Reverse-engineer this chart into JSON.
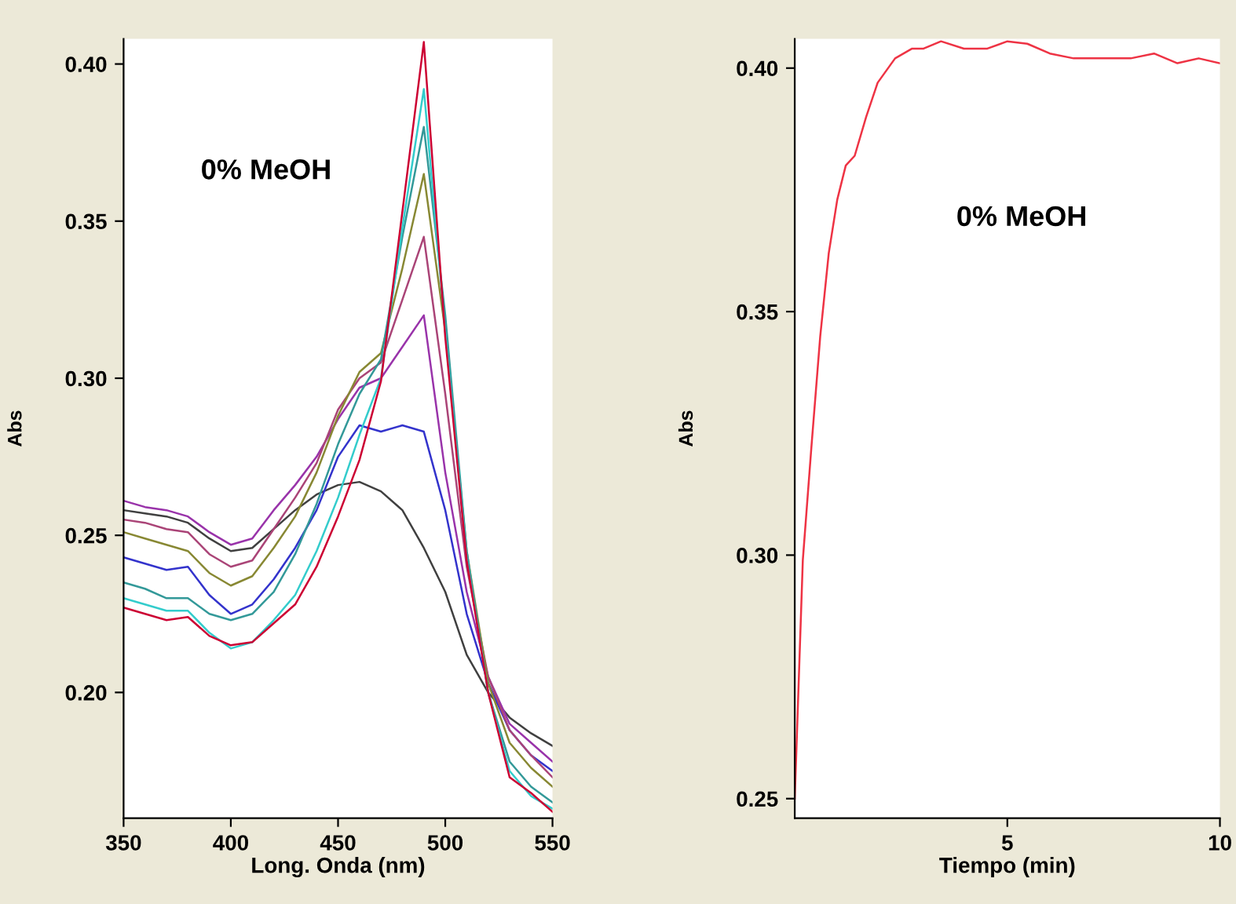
{
  "chart_data": [
    {
      "type": "line",
      "xlabel": "Long. Onda (nm)",
      "ylabel": "Abs",
      "annotations": [
        "0% MeOH"
      ],
      "x": [
        350,
        360,
        370,
        380,
        390,
        400,
        410,
        420,
        430,
        440,
        450,
        460,
        470,
        480,
        490,
        500,
        510,
        520,
        530,
        540,
        550
      ],
      "xlim": [
        350,
        550
      ],
      "xticks": [
        350,
        400,
        450,
        500,
        550
      ],
      "ylim": [
        0.16,
        0.408
      ],
      "yticks": [
        {
          "value": 0.2,
          "label": "0.20"
        },
        {
          "value": 0.25,
          "label": "0.25"
        },
        {
          "value": 0.3,
          "label": "0.30"
        },
        {
          "value": 0.35,
          "label": "0.35"
        },
        {
          "value": 0.4,
          "label": "0.40"
        }
      ],
      "grid": false,
      "series": [
        {
          "color": "#404040",
          "values": [
            0.258,
            0.257,
            0.256,
            0.254,
            0.249,
            0.245,
            0.246,
            0.252,
            0.258,
            0.263,
            0.266,
            0.267,
            0.264,
            0.258,
            0.246,
            0.232,
            0.212,
            0.2,
            0.192,
            0.187,
            0.183
          ]
        },
        {
          "color": "#3333cc",
          "values": [
            0.243,
            0.241,
            0.239,
            0.24,
            0.231,
            0.225,
            0.228,
            0.236,
            0.246,
            0.258,
            0.275,
            0.285,
            0.283,
            0.285,
            0.283,
            0.258,
            0.225,
            0.203,
            0.188,
            0.18,
            0.175
          ]
        },
        {
          "color": "#9933aa",
          "values": [
            0.261,
            0.259,
            0.258,
            0.256,
            0.251,
            0.247,
            0.249,
            0.258,
            0.266,
            0.275,
            0.287,
            0.297,
            0.3,
            0.31,
            0.32,
            0.27,
            0.232,
            0.205,
            0.19,
            0.184,
            0.178
          ]
        },
        {
          "color": "#aa4477",
          "values": [
            0.255,
            0.254,
            0.252,
            0.251,
            0.244,
            0.24,
            0.242,
            0.252,
            0.262,
            0.273,
            0.29,
            0.3,
            0.305,
            0.325,
            0.345,
            0.295,
            0.24,
            0.205,
            0.188,
            0.18,
            0.173
          ]
        },
        {
          "color": "#888833",
          "values": [
            0.251,
            0.249,
            0.247,
            0.245,
            0.238,
            0.234,
            0.237,
            0.246,
            0.256,
            0.27,
            0.288,
            0.302,
            0.308,
            0.335,
            0.365,
            0.315,
            0.245,
            0.203,
            0.184,
            0.176,
            0.17
          ]
        },
        {
          "color": "#339999",
          "values": [
            0.235,
            0.233,
            0.23,
            0.23,
            0.225,
            0.223,
            0.225,
            0.232,
            0.244,
            0.26,
            0.279,
            0.295,
            0.306,
            0.345,
            0.38,
            0.32,
            0.245,
            0.2,
            0.178,
            0.17,
            0.165
          ]
        },
        {
          "color": "#33cccc",
          "values": [
            0.23,
            0.228,
            0.226,
            0.226,
            0.219,
            0.214,
            0.216,
            0.223,
            0.231,
            0.245,
            0.262,
            0.282,
            0.3,
            0.348,
            0.392,
            0.315,
            0.243,
            0.2,
            0.175,
            0.167,
            0.163
          ]
        },
        {
          "color": "#cc0033",
          "values": [
            0.227,
            0.225,
            0.223,
            0.224,
            0.218,
            0.215,
            0.216,
            0.222,
            0.228,
            0.24,
            0.256,
            0.274,
            0.299,
            0.353,
            0.407,
            0.313,
            0.242,
            0.2,
            0.173,
            0.168,
            0.162
          ]
        }
      ]
    },
    {
      "type": "line",
      "xlabel": "Tiempo (min)",
      "ylabel": "Abs",
      "annotations": [
        "0% MeOH"
      ],
      "x": [
        0,
        0.19,
        0.39,
        0.6,
        0.8,
        1.0,
        1.2,
        1.41,
        1.68,
        1.95,
        2.36,
        2.76,
        3.03,
        3.44,
        3.98,
        4.53,
        5.0,
        5.47,
        6.0,
        6.56,
        6.96,
        7.5,
        7.9,
        8.45,
        9.0,
        9.5,
        10
      ],
      "xlim": [
        0,
        10
      ],
      "xticks": [
        5,
        10
      ],
      "ylim": [
        0.246,
        0.406
      ],
      "yticks": [
        {
          "value": 0.25,
          "label": "0.25"
        },
        {
          "value": 0.3,
          "label": "0.30"
        },
        {
          "value": 0.35,
          "label": "0.35"
        },
        {
          "value": 0.4,
          "label": "0.40"
        }
      ],
      "grid": false,
      "series": [
        {
          "color": "#ee3344",
          "values": [
            0.25,
            0.299,
            0.322,
            0.345,
            0.362,
            0.373,
            0.38,
            0.382,
            0.39,
            0.397,
            0.402,
            0.404,
            0.404,
            0.4055,
            0.404,
            0.404,
            0.4055,
            0.405,
            0.403,
            0.402,
            0.402,
            0.402,
            0.402,
            0.403,
            0.401,
            0.402,
            0.401
          ]
        }
      ]
    }
  ]
}
